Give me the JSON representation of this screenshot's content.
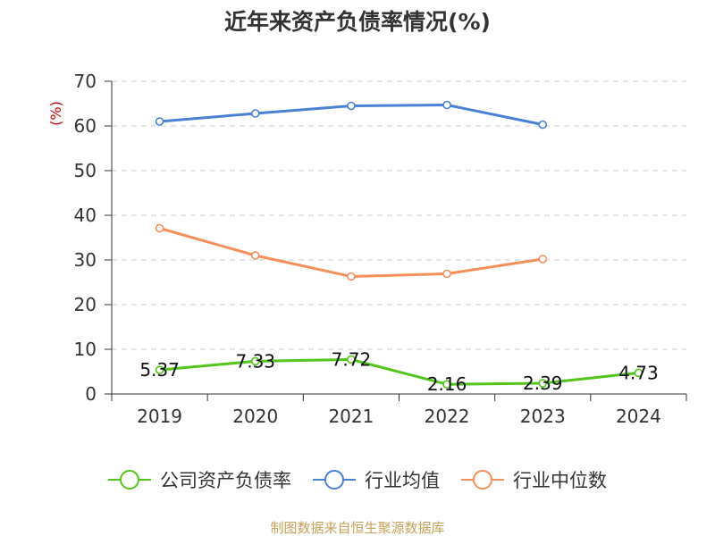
{
  "chart_data": {
    "type": "line",
    "title": "近年来资产负债率情况(%)",
    "ylabel": "(%)",
    "xlabel": "",
    "categories": [
      "2019",
      "2020",
      "2021",
      "2022",
      "2023",
      "2024"
    ],
    "ylim": [
      0,
      70
    ],
    "yticks": [
      0,
      10,
      20,
      30,
      40,
      50,
      60,
      70
    ],
    "grid": true,
    "legend_position": "bottom",
    "series": [
      {
        "name": "公司资产负债率",
        "color": "#52c41a",
        "values": [
          5.37,
          7.33,
          7.72,
          2.16,
          2.39,
          4.73
        ],
        "labels": [
          "5.37",
          "7.33",
          "7.72",
          "2.16",
          "2.39",
          "4.73"
        ]
      },
      {
        "name": "行业均值",
        "color": "#4a7fd6",
        "values": [
          61.0,
          62.8,
          64.5,
          64.7,
          60.3,
          null
        ]
      },
      {
        "name": "行业中位数",
        "color": "#f58e5a",
        "values": [
          37.1,
          31.0,
          26.3,
          26.9,
          30.2,
          null
        ]
      }
    ]
  },
  "source_text": "制图数据来自恒生聚源数据库",
  "colors": {
    "ylabel": "#cc0000",
    "source": "#c8a05a",
    "axis": "#333333",
    "grid": "#cccccc"
  }
}
